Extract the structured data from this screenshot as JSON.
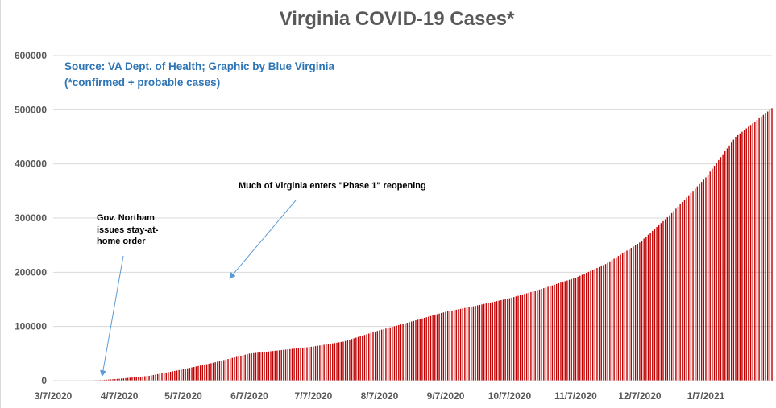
{
  "chart_data": {
    "type": "bar",
    "title": "Virginia COVID-19 Cases*",
    "subtitle_lines": [
      "Source: VA Dept. of Health; Graphic by Blue Virginia",
      "(*confirmed + probable cases)"
    ],
    "xlabel": "",
    "ylabel": "",
    "ylim": [
      0,
      600000
    ],
    "yticks": [
      "0",
      "100000",
      "200000",
      "300000",
      "400000",
      "500000",
      "600000"
    ],
    "yticks_values": [
      0,
      100000,
      200000,
      300000,
      400000,
      500000,
      600000
    ],
    "xticks": [
      "3/7/2020",
      "4/7/2020",
      "5/7/2020",
      "6/7/2020",
      "7/7/2020",
      "8/7/2020",
      "9/7/2020",
      "10/7/2020",
      "11/7/2020",
      "12/7/2020",
      "1/7/2021"
    ],
    "x_start_date": "2020-03-07",
    "x_end_date": "2021-02-07",
    "grid": true,
    "bar_color": "#c00000",
    "series_anchors": [
      [
        "2020-03-07",
        0
      ],
      [
        "2020-03-20",
        100
      ],
      [
        "2020-03-31",
        1500
      ],
      [
        "2020-04-07",
        3500
      ],
      [
        "2020-04-21",
        9000
      ],
      [
        "2020-05-07",
        21000
      ],
      [
        "2020-05-21",
        33000
      ],
      [
        "2020-06-07",
        50000
      ],
      [
        "2020-06-21",
        56000
      ],
      [
        "2020-07-07",
        63000
      ],
      [
        "2020-07-21",
        72000
      ],
      [
        "2020-08-07",
        93000
      ],
      [
        "2020-08-21",
        108000
      ],
      [
        "2020-09-07",
        127000
      ],
      [
        "2020-09-21",
        138000
      ],
      [
        "2020-10-07",
        152000
      ],
      [
        "2020-10-21",
        168000
      ],
      [
        "2020-11-07",
        190000
      ],
      [
        "2020-11-21",
        215000
      ],
      [
        "2020-12-07",
        255000
      ],
      [
        "2020-12-21",
        305000
      ],
      [
        "2021-01-07",
        375000
      ],
      [
        "2021-01-21",
        450000
      ],
      [
        "2021-02-07",
        503000
      ]
    ],
    "annotations": [
      {
        "text": "Gov. Northam\nissues stay-at-\nhome order",
        "points_to": [
          "2020-03-30",
          10000
        ]
      },
      {
        "text": "Much of Virginia enters \"Phase 1\" reopening",
        "points_to": [
          "2020-05-29",
          190000
        ]
      }
    ]
  },
  "colors": {
    "title": "#595959",
    "source_note": "#2e75b6",
    "gridline": "#d9d9d9",
    "arrow": "#5b9bd5",
    "bars": "#c00000"
  }
}
